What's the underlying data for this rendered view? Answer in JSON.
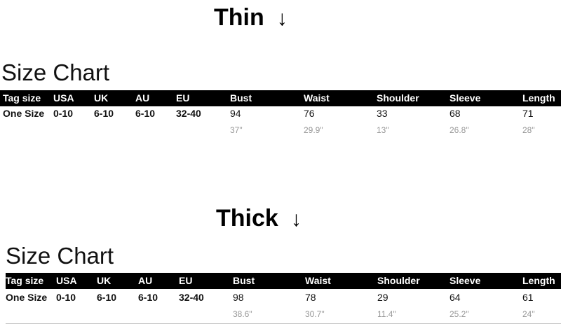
{
  "columns": [
    "Tag size",
    "USA",
    "UK",
    "AU",
    "EU",
    "Bust",
    "Waist",
    "Shoulder",
    "Sleeve",
    "Length"
  ],
  "sections": [
    {
      "variant": "Thin",
      "arrow": "↓",
      "title": "Size Chart",
      "row": [
        "One Size",
        "0-10",
        "6-10",
        "6-10",
        "32-40",
        "94",
        "76",
        "33",
        "68",
        "71"
      ],
      "inches": [
        "37\"",
        "29.9\"",
        "13\"",
        "26.8\"",
        "28\""
      ]
    },
    {
      "variant": "Thick",
      "arrow": "↓",
      "title": "Size Chart",
      "row": [
        "One Size",
        "0-10",
        "6-10",
        "6-10",
        "32-40",
        "98",
        "78",
        "29",
        "64",
        "61"
      ],
      "inches": [
        "38.6\"",
        "30.7\"",
        "11.4\"",
        "25.2\"",
        "24\""
      ]
    }
  ]
}
